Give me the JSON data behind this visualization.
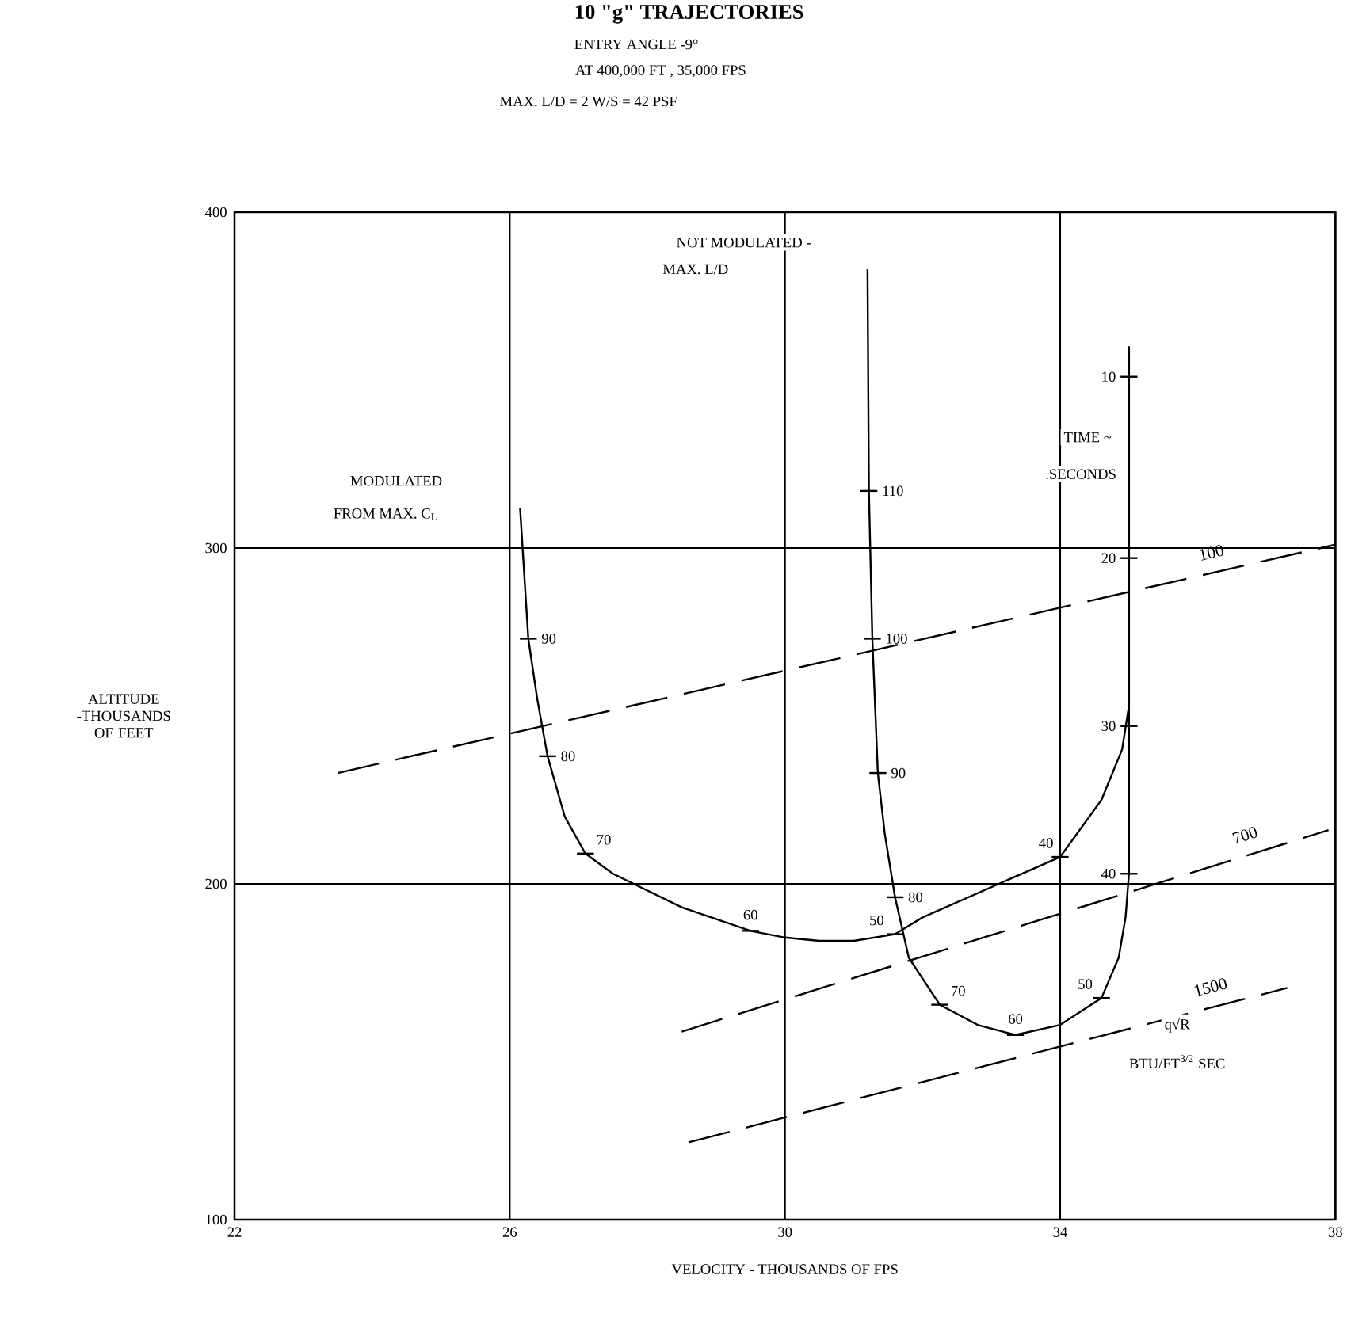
{
  "chart_data": {
    "type": "line",
    "title": "10 \"g\" TRAJECTORIES",
    "subtitle": "ENTRY ANGLE -9°",
    "xlabel": "VELOCITY - THOUSANDS OF FPS",
    "ylabel": "ALTITUDE -THOUSANDS OF FEET",
    "xlim": [
      22,
      38
    ],
    "ylim": [
      100,
      400
    ],
    "xticks": [
      22,
      26,
      30,
      34,
      38
    ],
    "yticks": [
      100,
      200,
      300,
      400
    ],
    "grid": true,
    "series": [
      {
        "color": "#000000",
        "line_style": "solid",
        "x": [
          35,
          35,
          34.9,
          34.6,
          34.0,
          33.0,
          32.0,
          31.6,
          31.0,
          30.5,
          30.0,
          29.5,
          28.5,
          27.5,
          27.1,
          26.8,
          26.55,
          26.4,
          26.27,
          26.15
        ],
        "values": [
          360,
          253,
          240,
          225,
          208,
          199,
          190,
          185,
          183,
          183,
          184,
          186,
          193,
          203,
          209,
          220,
          238,
          255,
          273,
          312
        ]
      },
      {
        "color": "#000000",
        "line_style": "solid",
        "x": [
          35,
          35,
          34.95,
          34.85,
          34.6,
          34.0,
          33.35,
          32.8,
          32.25,
          31.8,
          31.6,
          31.45,
          31.35,
          31.27,
          31.22,
          31.2
        ],
        "values": [
          360,
          203,
          190,
          178,
          166,
          158,
          155,
          158,
          164,
          178,
          196,
          215,
          233,
          273,
          317,
          383
        ]
      },
      {
        "name": "100",
        "color": "#000000",
        "line_style": "dashed",
        "x": [
          23.5,
          38
        ],
        "values": [
          233,
          301
        ]
      },
      {
        "name": "700",
        "color": "#000000",
        "line_style": "dashed",
        "x": [
          28.5,
          37.9
        ],
        "values": [
          156,
          216
        ]
      },
      {
        "name": "1500",
        "color": "#000000",
        "line_style": "dashed",
        "x": [
          28.6,
          37.3
        ],
        "values": [
          123,
          169
        ]
      }
    ],
    "annotations": [
      "AT 400,000 FT , 35,000 FPS",
      "MAX. L/D = 2   W/S = 42 PSF",
      "MODULATED",
      "FROM MAX. C$_{L}$",
      "NOT MODULATED -",
      "MAX. L/D",
      "TIME ~",
      ".SECONDS",
      "q√R",
      "BTU/FT$^{3/2}$ SEC",
      {
        "text": "10",
        "x": 35,
        "y": 351
      },
      {
        "text": "20",
        "x": 35,
        "y": 297
      },
      {
        "text": "30",
        "x": 35,
        "y": 247
      },
      {
        "text": "40",
        "x": 35,
        "y": 203
      },
      {
        "text": "40",
        "x": 34.0,
        "y": 208
      },
      {
        "text": "50",
        "x": 31.6,
        "y": 185
      },
      {
        "text": "60",
        "x": 29.5,
        "y": 186
      },
      {
        "text": "70",
        "x": 27.1,
        "y": 209
      },
      {
        "text": "80",
        "x": 26.55,
        "y": 238
      },
      {
        "text": "90",
        "x": 26.27,
        "y": 273
      },
      {
        "text": "110",
        "x": 31.22,
        "y": 317
      },
      {
        "text": "100",
        "x": 31.27,
        "y": 273
      },
      {
        "text": "90",
        "x": 31.35,
        "y": 233
      },
      {
        "text": "80",
        "x": 31.6,
        "y": 196
      },
      {
        "text": "70",
        "x": 32.25,
        "y": 164
      },
      {
        "text": "60",
        "x": 33.35,
        "y": 155
      },
      {
        "text": "50",
        "x": 34.6,
        "y": 166
      }
    ]
  }
}
